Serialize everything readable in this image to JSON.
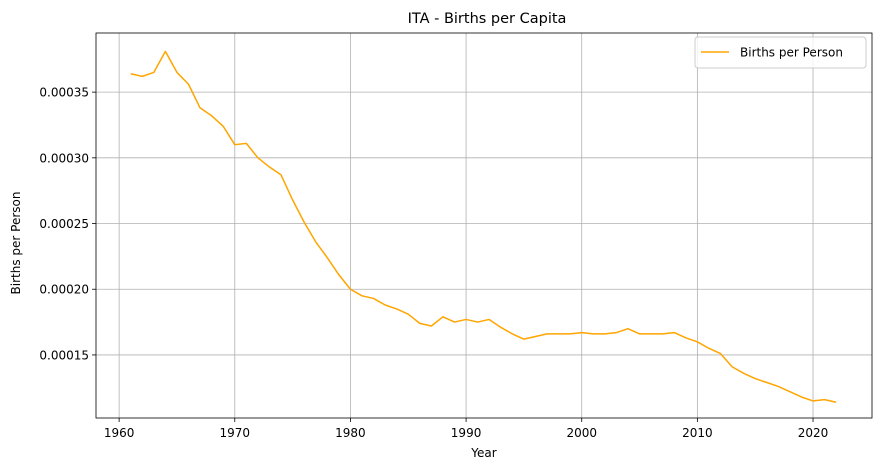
{
  "chart_data": {
    "type": "line",
    "title": "ITA - Births per Capita",
    "xlabel": "Year",
    "ylabel": "Births per Person",
    "xlim": [
      1958,
      2025.1
    ],
    "ylim": [
      0.000102,
      0.000395
    ],
    "xticks": [
      1960,
      1970,
      1980,
      1990,
      2000,
      2010,
      2020
    ],
    "xtick_labels": [
      "1960",
      "1970",
      "1980",
      "1990",
      "2000",
      "2010",
      "2020"
    ],
    "yticks": [
      0.00015,
      0.0002,
      0.00025,
      0.0003,
      0.00035
    ],
    "ytick_labels": [
      "0.00015",
      "0.00020",
      "0.00025",
      "0.00030",
      "0.00035"
    ],
    "grid": true,
    "legend_position": "top-right",
    "series": [
      {
        "name": "Births per Person",
        "color": "#ffa500",
        "x": [
          1961,
          1962,
          1963,
          1964,
          1965,
          1966,
          1967,
          1968,
          1969,
          1970,
          1971,
          1972,
          1973,
          1974,
          1975,
          1976,
          1977,
          1978,
          1979,
          1980,
          1981,
          1982,
          1983,
          1984,
          1985,
          1986,
          1987,
          1988,
          1989,
          1990,
          1991,
          1992,
          1993,
          1994,
          1995,
          1996,
          1997,
          1998,
          1999,
          2000,
          2001,
          2002,
          2003,
          2004,
          2005,
          2006,
          2007,
          2008,
          2009,
          2010,
          2011,
          2012,
          2013,
          2014,
          2015,
          2016,
          2017,
          2018,
          2019,
          2020,
          2021,
          2022
        ],
        "y": [
          0.000364,
          0.000362,
          0.000365,
          0.000381,
          0.000365,
          0.000356,
          0.000338,
          0.000332,
          0.000324,
          0.00031,
          0.000311,
          0.0003,
          0.000293,
          0.000287,
          0.000268,
          0.000251,
          0.000236,
          0.000224,
          0.000211,
          0.0002,
          0.000195,
          0.000193,
          0.000188,
          0.000185,
          0.000181,
          0.000174,
          0.000172,
          0.000179,
          0.000175,
          0.000177,
          0.000175,
          0.000177,
          0.000171,
          0.000166,
          0.000162,
          0.000164,
          0.000166,
          0.000166,
          0.000166,
          0.000167,
          0.000166,
          0.000166,
          0.000167,
          0.00017,
          0.000166,
          0.000166,
          0.000166,
          0.000167,
          0.000163,
          0.00016,
          0.000155,
          0.000151,
          0.000141,
          0.000136,
          0.000132,
          0.000129,
          0.000126,
          0.000122,
          0.000118,
          0.000115,
          0.000116,
          0.000114
        ]
      }
    ]
  }
}
